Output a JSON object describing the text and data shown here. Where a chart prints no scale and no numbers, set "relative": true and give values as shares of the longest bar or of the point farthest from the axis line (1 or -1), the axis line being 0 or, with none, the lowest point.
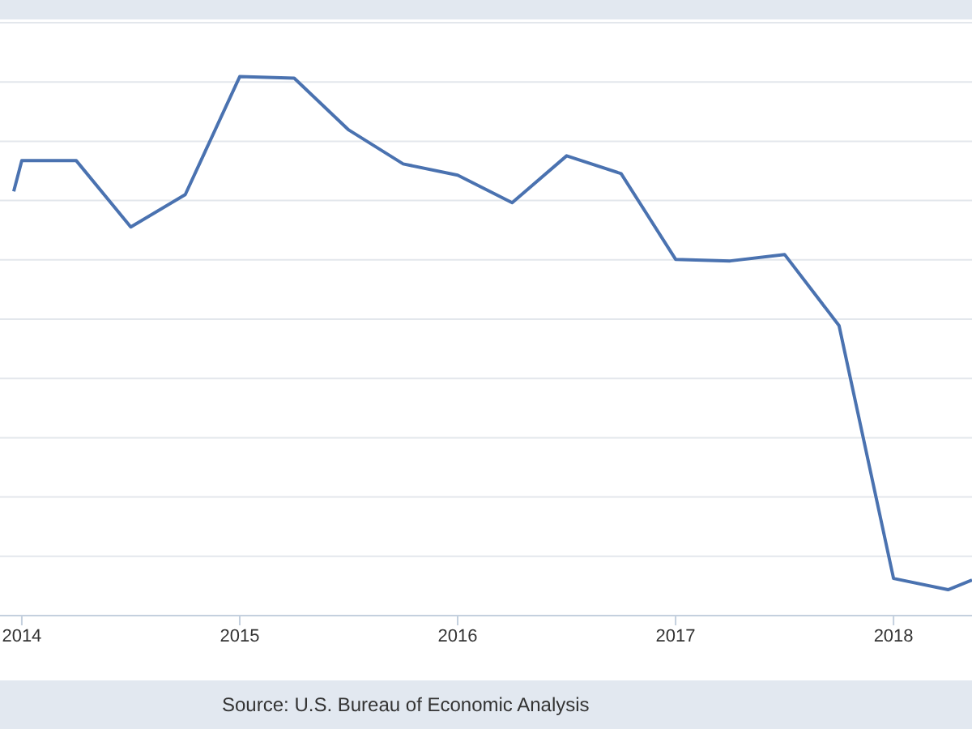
{
  "chart_data": {
    "type": "line",
    "relative": true,
    "x": [
      2013.963,
      2014,
      2014.25,
      2014.5,
      2014.75,
      2015,
      2015.25,
      2015.5,
      2015.75,
      2016,
      2016.25,
      2016.5,
      2016.75,
      2017,
      2017.25,
      2017.5,
      2017.75,
      2018,
      2018.25,
      2018.36
    ],
    "series": [
      {
        "color": "#4a72b0",
        "values": [
          0.787,
          0.844,
          0.844,
          0.721,
          0.781,
          1.0,
          0.997,
          0.901,
          0.838,
          0.817,
          0.766,
          0.853,
          0.82,
          0.661,
          0.658,
          0.67,
          0.538,
          0.069,
          0.048,
          0.066
        ]
      }
    ],
    "xlim": [
      2013.9,
      2018.36
    ],
    "xticks": [
      2014,
      2015,
      2016,
      2017,
      2018
    ],
    "grid": "y",
    "annotations": [
      "Source: U.S. Bureau of Economic Analysis"
    ]
  }
}
